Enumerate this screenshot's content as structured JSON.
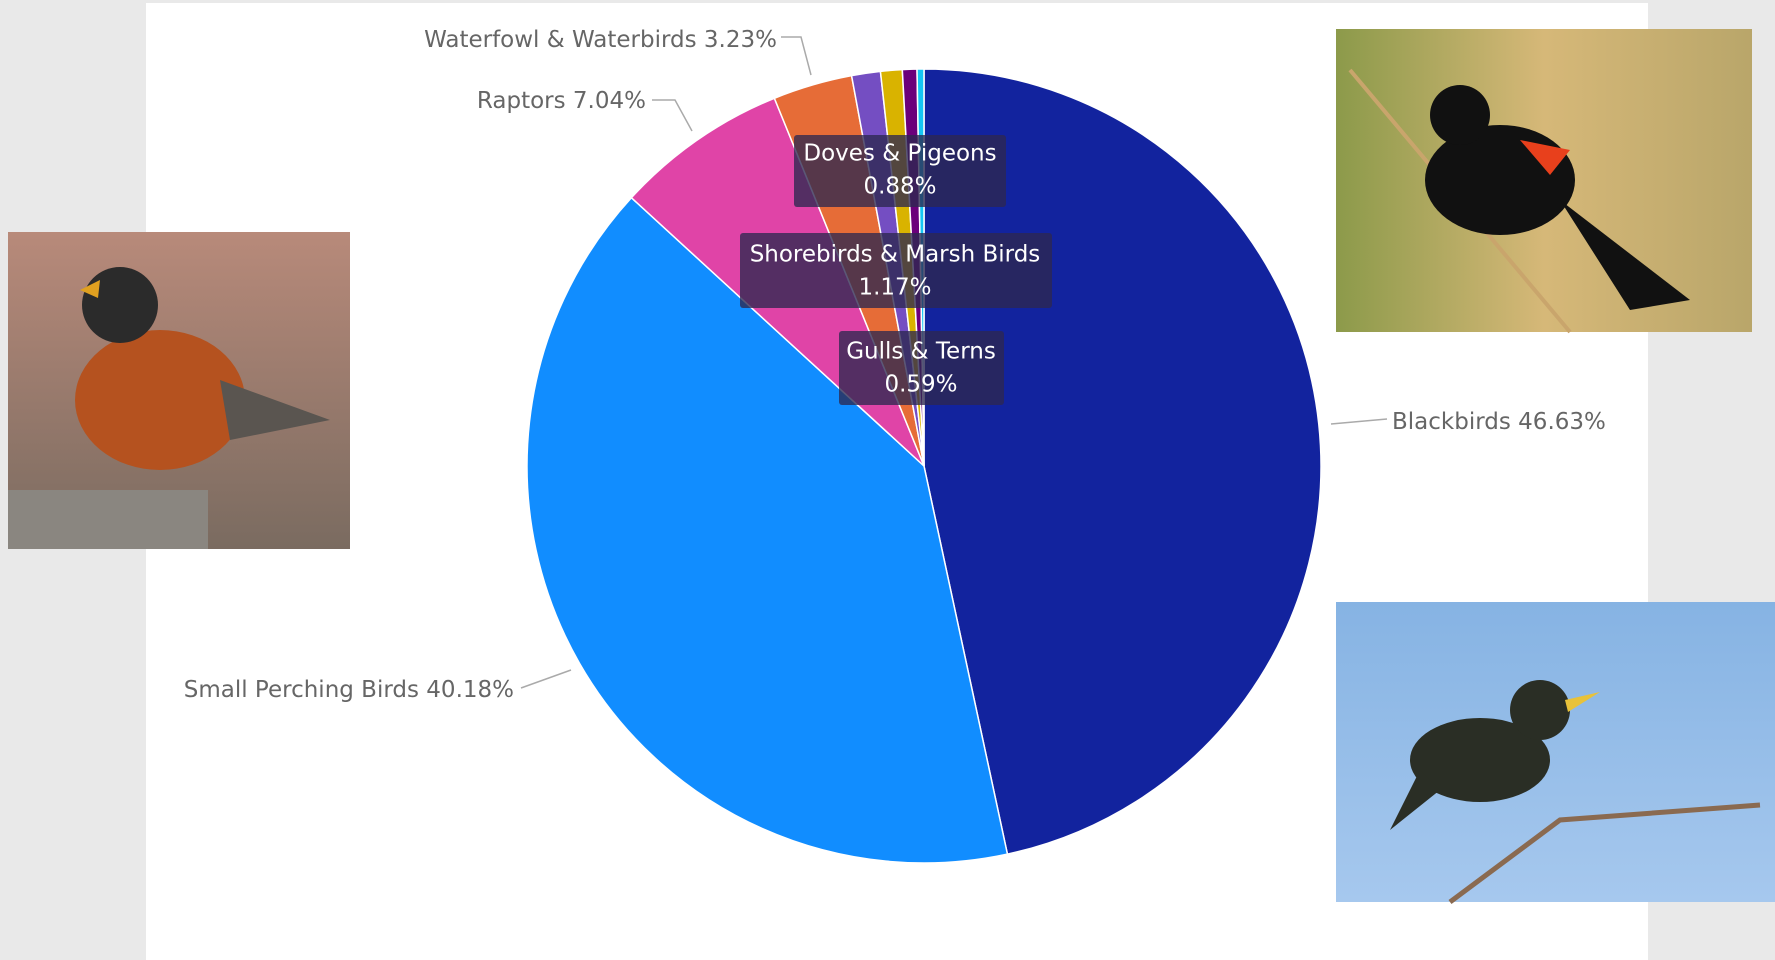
{
  "chart_data": {
    "type": "pie",
    "categories": [
      "Blackbirds",
      "Small Perching Birds",
      "Raptors",
      "Waterfowl & Waterbirds",
      "Shorebirds & Marsh Birds",
      "Doves & Pigeons",
      "Gulls & Terns",
      null
    ],
    "values": [
      46.63,
      40.18,
      7.04,
      3.23,
      1.17,
      0.88,
      0.59,
      0.28
    ],
    "value_labels": [
      "46.63%",
      "40.18%",
      "7.04%",
      "3.23%",
      "1.17%",
      "0.88%",
      "0.59%",
      null
    ],
    "colors": [
      "#12239e",
      "#118dff",
      "#e044a7",
      "#e66c37",
      "#744ec2",
      "#d9b300",
      "#6b007b",
      "#15c6f4"
    ]
  }
}
